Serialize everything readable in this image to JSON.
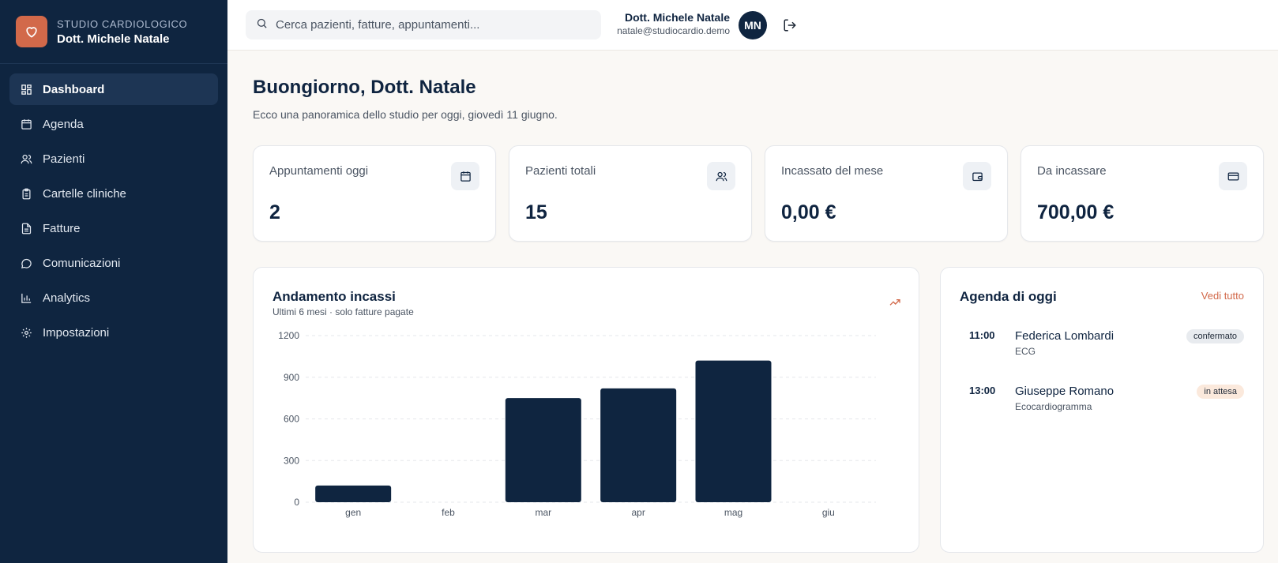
{
  "brand": {
    "subtitle": "STUDIO CARDIOLOGICO",
    "name": "Dott. Michele Natale"
  },
  "nav": [
    {
      "label": "Dashboard",
      "icon": "grid-icon",
      "active": true
    },
    {
      "label": "Agenda",
      "icon": "calendar-icon"
    },
    {
      "label": "Pazienti",
      "icon": "users-icon"
    },
    {
      "label": "Cartelle cliniche",
      "icon": "clipboard-icon"
    },
    {
      "label": "Fatture",
      "icon": "file-icon"
    },
    {
      "label": "Comunicazioni",
      "icon": "chat-icon"
    },
    {
      "label": "Analytics",
      "icon": "bar-chart-icon"
    },
    {
      "label": "Impostazioni",
      "icon": "gear-icon"
    }
  ],
  "header": {
    "search_placeholder": "Cerca pazienti, fatture, appuntamenti...",
    "user_name": "Dott. Michele Natale",
    "user_email": "natale@studiocardio.demo",
    "avatar_initials": "MN"
  },
  "main": {
    "greeting": "Buongiorno, Dott. Natale",
    "subgreeting": "Ecco una panoramica dello studio per oggi, giovedì 11 giugno."
  },
  "stats": [
    {
      "label": "Appuntamenti oggi",
      "value": "2",
      "icon": "calendar-icon"
    },
    {
      "label": "Pazienti totali",
      "value": "15",
      "icon": "users-icon"
    },
    {
      "label": "Incassato del mese",
      "value": "0,00 €",
      "icon": "wallet-icon"
    },
    {
      "label": "Da incassare",
      "value": "700,00 €",
      "icon": "credit-card-icon"
    }
  ],
  "chart_card": {
    "title": "Andamento incassi",
    "subtitle": "Ultimi 6 mesi · solo fatture pagate"
  },
  "chart_data": {
    "type": "bar",
    "categories": [
      "gen",
      "feb",
      "mar",
      "apr",
      "mag",
      "giu"
    ],
    "values": [
      120,
      0,
      750,
      820,
      1020,
      0
    ],
    "yticks": [
      0,
      300,
      600,
      900,
      1200
    ],
    "ylim": [
      0,
      1200
    ],
    "grid": true,
    "color": "#0f2540"
  },
  "agenda": {
    "title": "Agenda di oggi",
    "see_all": "Vedi tutto",
    "items": [
      {
        "time": "11:00",
        "name": "Federica Lombardi",
        "type": "ECG",
        "status": "confermato"
      },
      {
        "time": "13:00",
        "name": "Giuseppe Romano",
        "type": "Ecocardiogramma",
        "status": "in attesa"
      }
    ]
  },
  "colors": {
    "sidebar": "#0f2540",
    "accent": "#d2694a"
  }
}
